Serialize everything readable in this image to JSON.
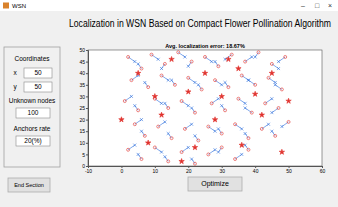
{
  "window": {
    "title": "WSN",
    "controls": [
      "–",
      "□",
      "×"
    ]
  },
  "header": {
    "title": "Localization in WSN Based on Compact Flower Pollination Algorithm"
  },
  "panel": {
    "heading": "Coordinates",
    "x_label": "x",
    "x_value": 50,
    "y_label": "y",
    "y_value": 50,
    "unknown_label": "Unknown nodes",
    "unknown_value": 100,
    "anchors_label": "Anchors rate",
    "anchors_value": "20(%)"
  },
  "buttons": {
    "end": "End Section",
    "optimize": "Optimize"
  },
  "chart_data": {
    "type": "scatter",
    "title": "Avg. localization error: 18.67%",
    "xlim": [
      -10,
      60
    ],
    "xticks": [
      -10,
      0,
      10,
      20,
      30,
      40,
      50,
      60
    ],
    "ylim": [
      0,
      50
    ],
    "yticks": [
      0,
      5,
      10,
      15,
      20,
      25,
      30,
      35,
      40,
      45,
      50
    ],
    "grid": false,
    "series": [
      {
        "color": "#e0322e",
        "marker": "circle",
        "x": [
          2,
          6,
          9,
          13,
          17,
          21,
          25,
          29,
          33,
          37,
          41,
          45,
          49,
          3,
          8,
          12,
          16,
          20,
          24,
          28,
          32,
          36,
          40,
          44,
          48,
          1,
          5,
          10,
          14,
          18,
          22,
          27,
          31,
          35,
          39,
          43,
          47,
          4,
          7,
          11,
          15,
          19,
          23,
          26,
          30,
          34,
          38,
          42,
          46,
          50,
          2,
          6,
          10,
          14,
          18,
          22,
          26,
          30,
          34,
          38
        ],
        "values": [
          47,
          42,
          48,
          44,
          49,
          45,
          47,
          43,
          48,
          45,
          49,
          44,
          47,
          37,
          34,
          39,
          35,
          38,
          33,
          37,
          34,
          39,
          35,
          38,
          33,
          28,
          24,
          29,
          25,
          28,
          23,
          27,
          24,
          29,
          23,
          27,
          25,
          18,
          13,
          17,
          12,
          16,
          11,
          17,
          14,
          18,
          12,
          16,
          13,
          19,
          7,
          3,
          8,
          2,
          6,
          1,
          5,
          8,
          3,
          7
        ]
      },
      {
        "color": "#2e6fdb",
        "marker": "x",
        "line_style": "solid",
        "x": [
          4,
          5,
          11,
          12,
          19,
          20,
          27,
          28,
          31,
          39,
          40,
          47,
          47,
          5,
          7,
          14,
          15,
          22,
          23,
          30,
          31,
          38,
          38,
          46,
          46,
          3,
          4,
          12,
          13,
          20,
          21,
          29,
          30,
          37,
          37,
          45,
          45,
          6,
          6,
          13,
          14,
          21,
          22,
          28,
          29,
          36,
          37,
          44,
          45,
          48,
          4,
          5,
          12,
          13,
          20,
          21,
          28,
          29,
          36,
          37
        ],
        "values": [
          45,
          44,
          46,
          42,
          47,
          43,
          45,
          45,
          46,
          47,
          47,
          42,
          45,
          39,
          36,
          37,
          37,
          36,
          35,
          35,
          36,
          37,
          37,
          36,
          35,
          30,
          26,
          27,
          27,
          26,
          25,
          29,
          26,
          27,
          25,
          29,
          23,
          20,
          15,
          19,
          14,
          18,
          13,
          15,
          16,
          16,
          14,
          18,
          15,
          17,
          9,
          5,
          6,
          4,
          8,
          3,
          7,
          6,
          5,
          9
        ]
      },
      {
        "color": "#e0322e",
        "marker": "star",
        "x": [
          5,
          15,
          25,
          35,
          45,
          10,
          20,
          30,
          40,
          50,
          0,
          12,
          28,
          42,
          8,
          22,
          36,
          48,
          18,
          32
        ],
        "values": [
          40,
          46,
          40,
          42,
          40,
          30,
          32,
          30,
          31,
          28,
          20,
          22,
          20,
          22,
          10,
          8,
          9,
          6,
          2,
          46
        ]
      }
    ]
  }
}
